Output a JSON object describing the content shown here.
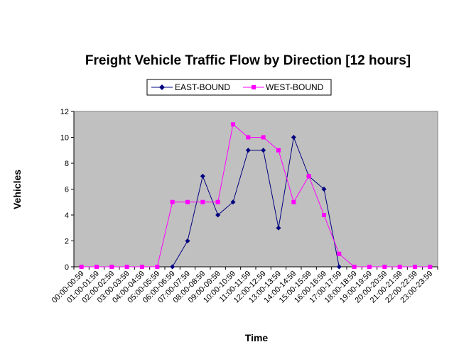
{
  "chart_data": {
    "type": "line",
    "title": "Freight Vehicle Traffic Flow by Direction [12 hours]",
    "xlabel": "Time",
    "ylabel": "Vehicles",
    "ylim": [
      0,
      12
    ],
    "yticks": [
      0,
      2,
      4,
      6,
      8,
      10,
      12
    ],
    "grid": false,
    "legend_position": "top",
    "plot_background": "#c0c0c0",
    "categories": [
      "00:00-00:59",
      "01:00-01:59",
      "02:00-02:59",
      "03:00-03:59",
      "04:00-04:59",
      "05:00-05:59",
      "06:00-06:59",
      "07:00-07:59",
      "08:00-08:59",
      "09:00-09:59",
      "10:00-10:59",
      "11:00-11:59",
      "12:00-12:59",
      "13:00-13:59",
      "14:00-14:59",
      "15:00-15:59",
      "16:00-16:59",
      "17:00-17:59",
      "18:00-18:59",
      "19:00-19:59",
      "20:00-20:59",
      "21:00-21:59",
      "22:00-22:59",
      "23:00-23:59"
    ],
    "series": [
      {
        "name": "EAST-BOUND",
        "color": "#000080",
        "marker": "diamond",
        "values": [
          null,
          null,
          null,
          null,
          null,
          null,
          0,
          2,
          7,
          4,
          5,
          9,
          9,
          3,
          10,
          7,
          6,
          0,
          null,
          null,
          null,
          null,
          null,
          null
        ]
      },
      {
        "name": "WEST-BOUND",
        "color": "#ff00ff",
        "marker": "square",
        "values": [
          0,
          0,
          0,
          0,
          0,
          0,
          5,
          5,
          5,
          5,
          11,
          10,
          10,
          9,
          5,
          7,
          4,
          1,
          0,
          0,
          0,
          0,
          0,
          0
        ]
      }
    ]
  }
}
